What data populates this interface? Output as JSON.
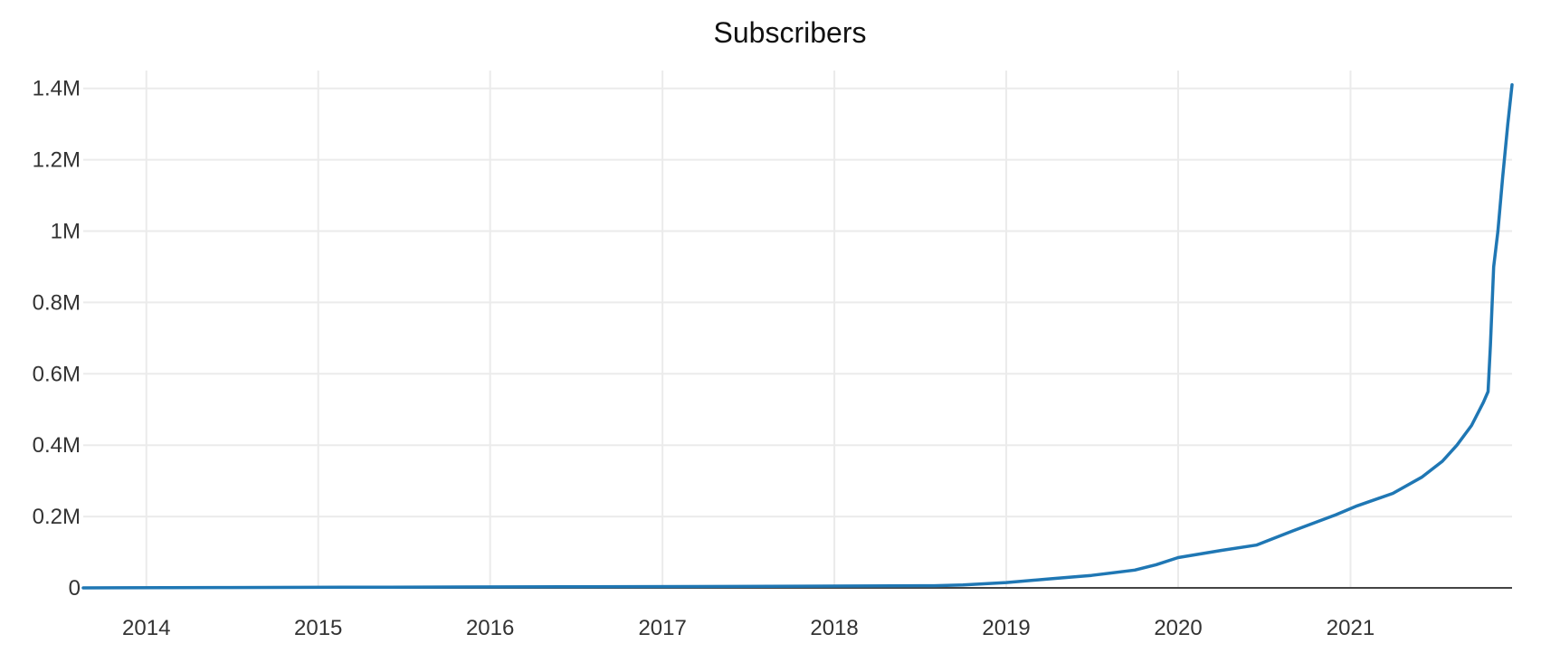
{
  "chart_data": {
    "type": "line",
    "title": "Subscribers",
    "xlabel": "",
    "ylabel": "",
    "xlim": [
      "2013-08-20",
      "2021-12-10"
    ],
    "ylim": [
      0,
      1450000
    ],
    "grid": true,
    "legend": "none",
    "line_color": "#1f77b4",
    "x_ticks": [
      {
        "date": "2014-01-01",
        "label": "2014"
      },
      {
        "date": "2015-01-01",
        "label": "2015"
      },
      {
        "date": "2016-01-01",
        "label": "2016"
      },
      {
        "date": "2017-01-01",
        "label": "2017"
      },
      {
        "date": "2018-01-01",
        "label": "2018"
      },
      {
        "date": "2019-01-01",
        "label": "2019"
      },
      {
        "date": "2020-01-01",
        "label": "2020"
      },
      {
        "date": "2021-01-01",
        "label": "2021"
      }
    ],
    "y_ticks": [
      {
        "value": 0,
        "label": "0"
      },
      {
        "value": 200000,
        "label": "0.2M"
      },
      {
        "value": 400000,
        "label": "0.4M"
      },
      {
        "value": 600000,
        "label": "0.6M"
      },
      {
        "value": 800000,
        "label": "0.8M"
      },
      {
        "value": 1000000,
        "label": "1M"
      },
      {
        "value": 1200000,
        "label": "1.2M"
      },
      {
        "value": 1400000,
        "label": "1.4M"
      }
    ],
    "series": [
      {
        "x": [
          "2013-08-20",
          "2014-06-01",
          "2015-06-01",
          "2016-06-01",
          "2017-06-01",
          "2018-01-01",
          "2018-08-01",
          "2018-10-01",
          "2019-01-01",
          "2019-04-01",
          "2019-07-01",
          "2019-10-01",
          "2019-11-15",
          "2020-01-01",
          "2020-04-01",
          "2020-06-15",
          "2020-09-01",
          "2020-12-01",
          "2021-01-15",
          "2021-04-01",
          "2021-06-01",
          "2021-07-15",
          "2021-08-15",
          "2021-09-15",
          "2021-10-10",
          "2021-10-20",
          "2021-10-25",
          "2021-11-01",
          "2021-11-10",
          "2021-11-20",
          "2021-12-01",
          "2021-12-10"
        ],
        "y": [
          0,
          1000,
          2000,
          3000,
          4000,
          5000,
          6000,
          8000,
          15000,
          25000,
          35000,
          50000,
          65000,
          85000,
          105000,
          120000,
          160000,
          205000,
          230000,
          265000,
          310000,
          355000,
          400000,
          455000,
          520000,
          550000,
          680000,
          900000,
          1000000,
          1150000,
          1300000,
          1410000
        ]
      }
    ]
  }
}
